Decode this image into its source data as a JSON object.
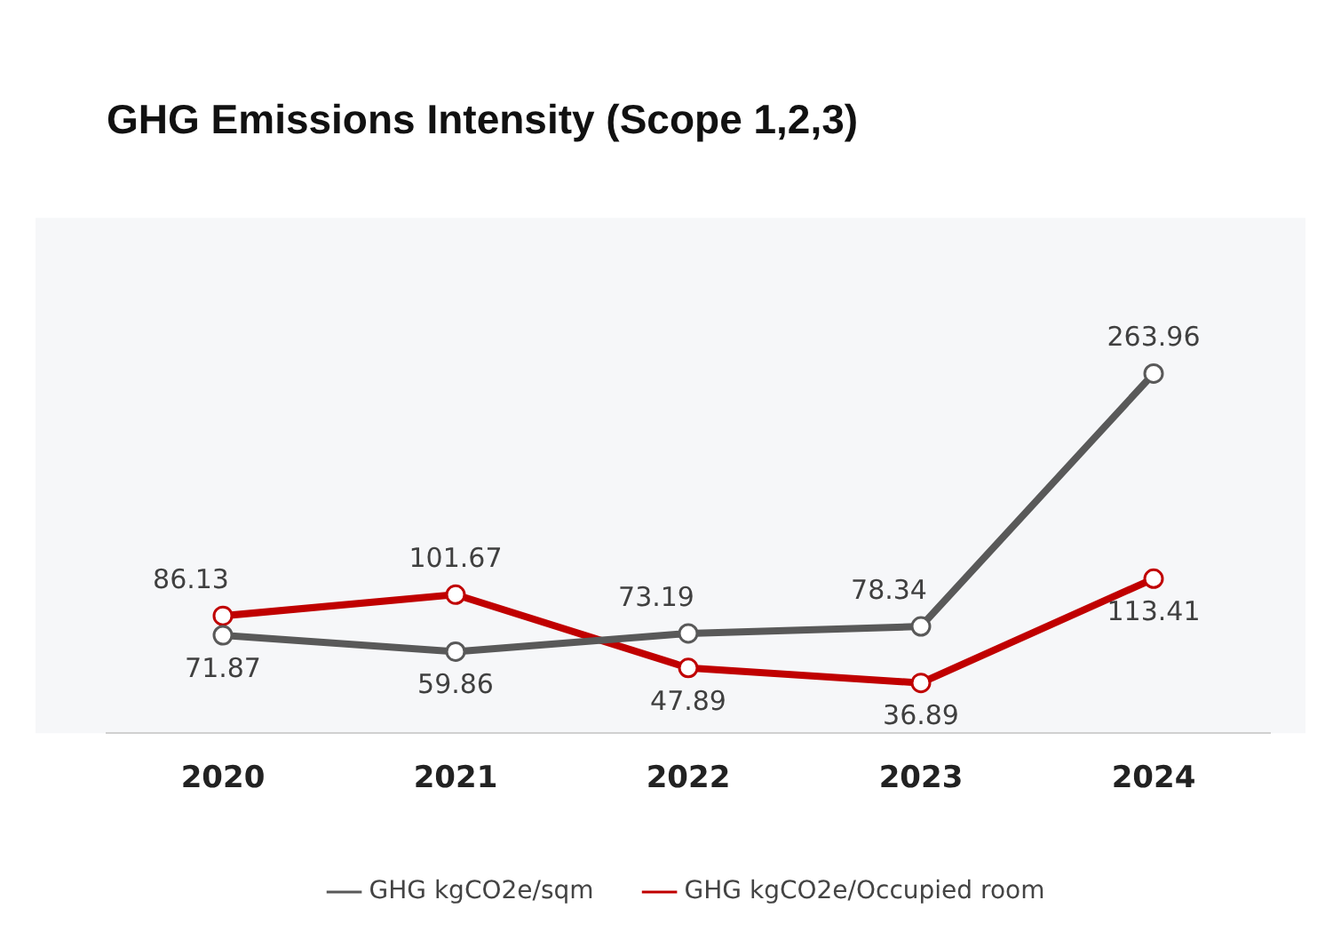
{
  "chart_data": {
    "type": "line",
    "title": "GHG Emissions Intensity (Scope 1,2,3)",
    "categories": [
      "2020",
      "2021",
      "2022",
      "2023",
      "2024"
    ],
    "series": [
      {
        "name": "GHG kgCO2e/sqm",
        "color": "#595959",
        "values": [
          71.87,
          59.86,
          73.19,
          78.34,
          263.96
        ]
      },
      {
        "name": "GHG kgCO2e/Occupied room",
        "color": "#c00000",
        "values": [
          86.13,
          101.67,
          47.89,
          36.89,
          113.41
        ]
      }
    ],
    "data_labels": true,
    "grid": false,
    "legend": "bottom",
    "marker": "circle",
    "line_style": "solid",
    "tick_labels": "x"
  }
}
